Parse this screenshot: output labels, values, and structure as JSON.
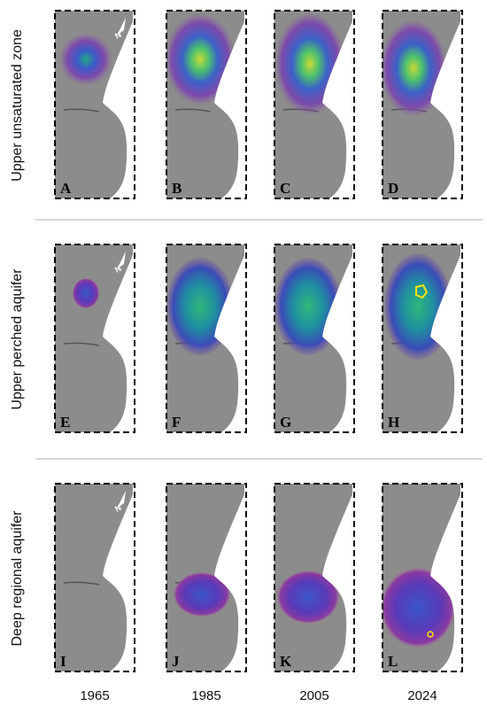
{
  "rows": [
    "Upper unsaturated zone",
    "Upper perched aquifer",
    "Deep regional aquifer"
  ],
  "panels": [
    [
      "A",
      "B",
      "C",
      "D"
    ],
    [
      "E",
      "F",
      "G",
      "H"
    ],
    [
      "I",
      "J",
      "K",
      "L"
    ]
  ],
  "years": [
    "1965",
    "1985",
    "2005",
    "2024"
  ],
  "north_label": "N"
}
